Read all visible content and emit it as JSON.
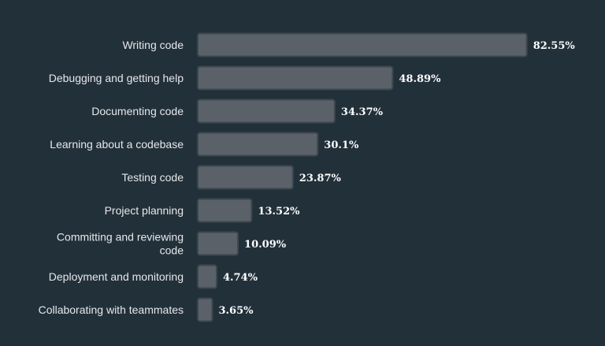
{
  "chart_data": {
    "type": "bar",
    "orientation": "horizontal",
    "title": "",
    "xlabel": "",
    "ylabel": "",
    "xlim": [
      0,
      100
    ],
    "grid": false,
    "legend": "none",
    "unit_suffix": "%",
    "categories": [
      "Writing code",
      "Debugging and getting help",
      "Documenting code",
      "Learning about a codebase",
      "Testing code",
      "Project planning",
      [
        "Committing and reviewing",
        "code"
      ],
      "Deployment and monitoring",
      "Collaborating with teammates"
    ],
    "values": [
      82.55,
      48.89,
      34.37,
      30.1,
      23.87,
      13.52,
      10.09,
      4.74,
      3.65
    ],
    "value_labels": [
      "82.55%",
      "48.89%",
      "34.37%",
      "30.1%",
      "23.87%",
      "13.52%",
      "10.09%",
      "4.74%",
      "3.65%"
    ]
  },
  "colors": {
    "background": "#22303a",
    "bar_fill": "#5a6168",
    "bar_stroke": "#3d474f",
    "category_text": "#e6e8ea",
    "value_text": "#ffffff"
  }
}
